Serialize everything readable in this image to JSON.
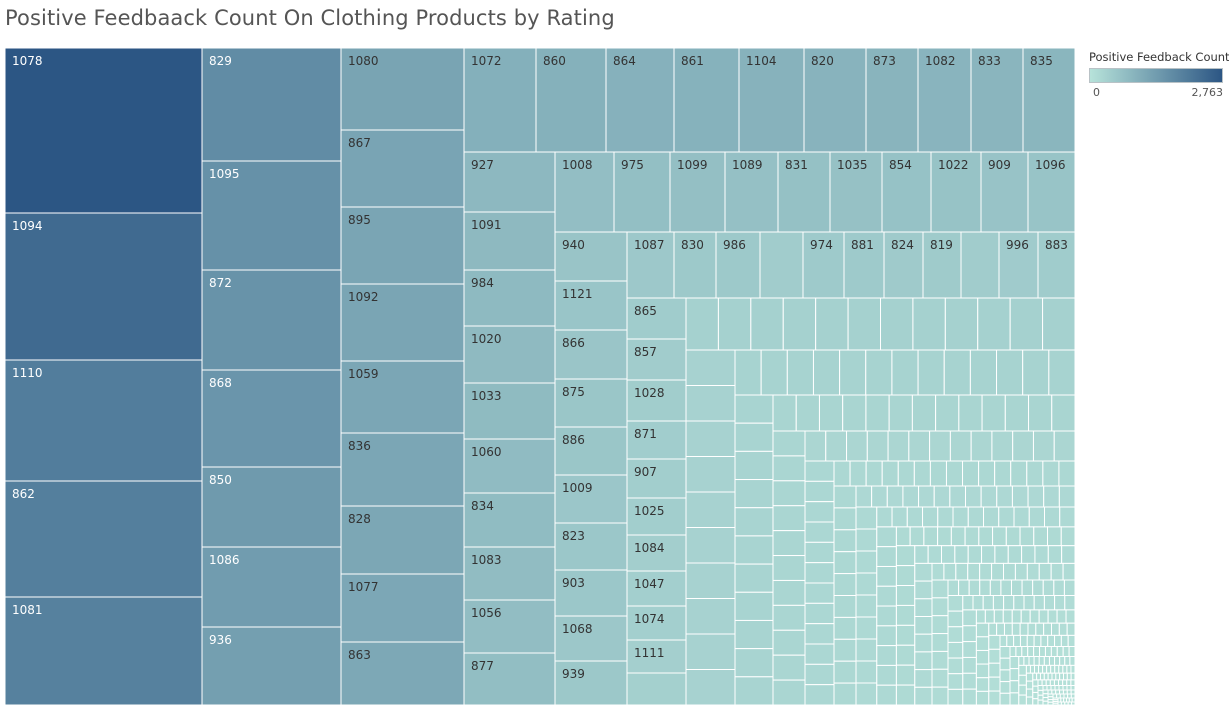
{
  "title": "Positive Feedbaack Count On Clothing Products by Rating",
  "legend": {
    "title": "Positive Feedback Count",
    "min_label": "0",
    "max_label": "2,763",
    "color_low": "#b7e3da",
    "color_high": "#2c5684"
  },
  "chart_data": {
    "type": "treemap",
    "title": "Positive Feedbaack Count On Clothing Products by Rating",
    "color_measure": "Positive Feedback Count",
    "color_range": [
      0,
      2763
    ],
    "labeled_items": [
      {
        "id": "1078",
        "value": 2763
      },
      {
        "id": "1094",
        "value": 2250
      },
      {
        "id": "1110",
        "value": 1800
      },
      {
        "id": "862",
        "value": 1750
      },
      {
        "id": "1081",
        "value": 1700
      },
      {
        "id": "829",
        "value": 1450
      },
      {
        "id": "1095",
        "value": 1350
      },
      {
        "id": "872",
        "value": 1300
      },
      {
        "id": "868",
        "value": 1250
      },
      {
        "id": "850",
        "value": 1150
      },
      {
        "id": "1086",
        "value": 1100
      },
      {
        "id": "936",
        "value": 1050
      },
      {
        "id": "1080",
        "value": 950
      },
      {
        "id": "867",
        "value": 940
      },
      {
        "id": "895",
        "value": 930
      },
      {
        "id": "1092",
        "value": 920
      },
      {
        "id": "1059",
        "value": 910
      },
      {
        "id": "836",
        "value": 900
      },
      {
        "id": "828",
        "value": 890
      },
      {
        "id": "1077",
        "value": 880
      },
      {
        "id": "863",
        "value": 870
      },
      {
        "id": "1072",
        "value": 720
      },
      {
        "id": "860",
        "value": 700
      },
      {
        "id": "864",
        "value": 690
      },
      {
        "id": "861",
        "value": 680
      },
      {
        "id": "1104",
        "value": 670
      },
      {
        "id": "820",
        "value": 650
      },
      {
        "id": "873",
        "value": 640
      },
      {
        "id": "1082",
        "value": 630
      },
      {
        "id": "833",
        "value": 620
      },
      {
        "id": "835",
        "value": 610
      },
      {
        "id": "927",
        "value": 560
      },
      {
        "id": "1091",
        "value": 550
      },
      {
        "id": "984",
        "value": 540
      },
      {
        "id": "1020",
        "value": 530
      },
      {
        "id": "1033",
        "value": 520
      },
      {
        "id": "1060",
        "value": 510
      },
      {
        "id": "834",
        "value": 500
      },
      {
        "id": "1083",
        "value": 490
      },
      {
        "id": "1056",
        "value": 480
      },
      {
        "id": "877",
        "value": 470
      },
      {
        "id": "1008",
        "value": 460
      },
      {
        "id": "975",
        "value": 450
      },
      {
        "id": "1099",
        "value": 440
      },
      {
        "id": "1089",
        "value": 430
      },
      {
        "id": "831",
        "value": 420
      },
      {
        "id": "1035",
        "value": 410
      },
      {
        "id": "854",
        "value": 400
      },
      {
        "id": "1022",
        "value": 390
      },
      {
        "id": "909",
        "value": 380
      },
      {
        "id": "1096",
        "value": 370
      },
      {
        "id": "940",
        "value": 360
      },
      {
        "id": "1121",
        "value": 350
      },
      {
        "id": "866",
        "value": 345
      },
      {
        "id": "875",
        "value": 340
      },
      {
        "id": "886",
        "value": 335
      },
      {
        "id": "1009",
        "value": 330
      },
      {
        "id": "823",
        "value": 325
      },
      {
        "id": "903",
        "value": 320
      },
      {
        "id": "1068",
        "value": 315
      },
      {
        "id": "939",
        "value": 310
      },
      {
        "id": "1087",
        "value": 300
      },
      {
        "id": "830",
        "value": 295
      },
      {
        "id": "986",
        "value": 290
      },
      {
        "id": "974",
        "value": 280
      },
      {
        "id": "881",
        "value": 275
      },
      {
        "id": "824",
        "value": 270
      },
      {
        "id": "819",
        "value": 265
      },
      {
        "id": "996",
        "value": 255
      },
      {
        "id": "883",
        "value": 250
      },
      {
        "id": "865",
        "value": 245
      },
      {
        "id": "857",
        "value": 240
      },
      {
        "id": "1028",
        "value": 235
      },
      {
        "id": "871",
        "value": 230
      },
      {
        "id": "907",
        "value": 225
      },
      {
        "id": "1025",
        "value": 220
      },
      {
        "id": "1084",
        "value": 215
      },
      {
        "id": "1047",
        "value": 210
      },
      {
        "id": "1074",
        "value": 205
      },
      {
        "id": "1111",
        "value": 200
      }
    ]
  }
}
